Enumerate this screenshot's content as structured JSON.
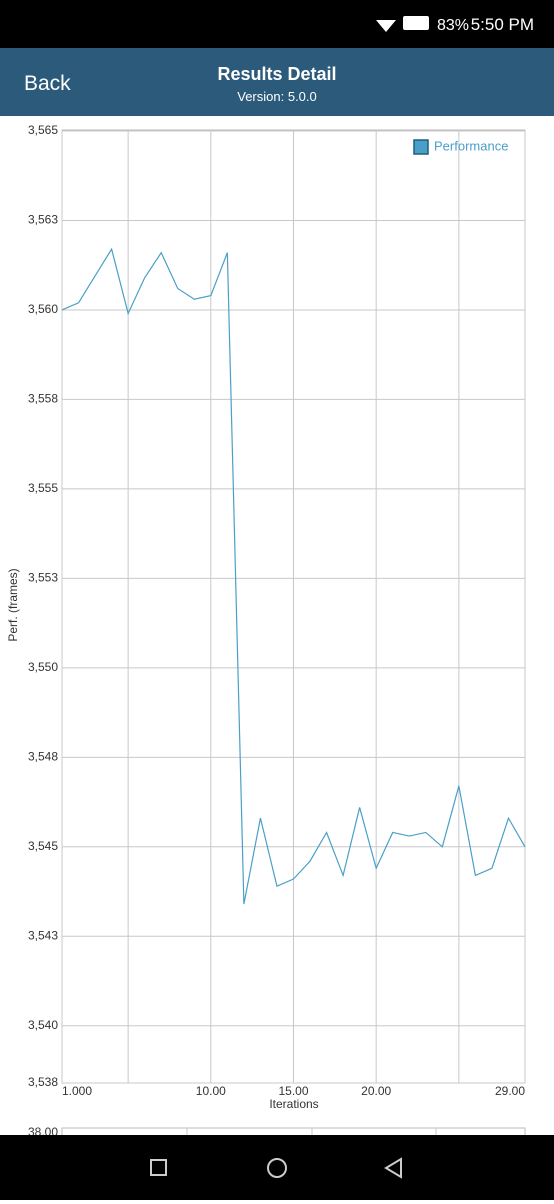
{
  "status_bar": {
    "battery": "83%",
    "time": "5:50 PM"
  },
  "header": {
    "back": "Back",
    "title": "Results Detail",
    "subtitle": "Version: 5.0.0"
  },
  "chart_data": {
    "type": "line",
    "y_label": "Perf. (frames)",
    "x_label": "Iterations",
    "x": [
      1,
      2,
      3,
      4,
      5,
      6,
      7,
      8,
      9,
      10,
      11,
      12,
      13,
      14,
      15,
      16,
      17,
      18,
      19,
      20,
      21,
      22,
      23,
      24,
      25,
      26,
      27,
      28,
      29
    ],
    "series": [
      {
        "name": "Performance",
        "color": "#4a9fc8",
        "values": [
          3560.0,
          3560.2,
          3560.95,
          3561.7,
          3559.9,
          3560.9,
          3561.6,
          3560.6,
          3560.3,
          3560.4,
          3561.6,
          3543.4,
          3545.8,
          3543.9,
          3544.1,
          3544.6,
          3545.4,
          3544.2,
          3546.1,
          3544.4,
          3545.4,
          3545.3,
          3545.4,
          3545.0,
          3546.7,
          3544.2,
          3544.4,
          3545.8,
          3545.0
        ]
      }
    ],
    "xlim": [
      1,
      29
    ],
    "ylim": [
      3538.4,
      3565
    ],
    "xticks": [
      {
        "value": 1,
        "label": "1.000"
      },
      {
        "value": 5,
        "label": null
      },
      {
        "value": 10,
        "label": "10.00"
      },
      {
        "value": 15,
        "label": "15.00"
      },
      {
        "value": 20,
        "label": "20.00"
      },
      {
        "value": 25,
        "label": null
      },
      {
        "value": 29,
        "label": "29.00"
      }
    ],
    "yticks": [
      {
        "value": 3565,
        "label": "3,565"
      },
      {
        "value": 3562.5,
        "label": "3,563"
      },
      {
        "value": 3560,
        "label": "3,560"
      },
      {
        "value": 3557.5,
        "label": "3,558"
      },
      {
        "value": 3555,
        "label": "3,555"
      },
      {
        "value": 3552.5,
        "label": "3,553"
      },
      {
        "value": 3550,
        "label": "3,550"
      },
      {
        "value": 3547.5,
        "label": "3,548"
      },
      {
        "value": 3545,
        "label": "3,545"
      },
      {
        "value": 3542.5,
        "label": "3,543"
      },
      {
        "value": 3540,
        "label": "3,540"
      },
      {
        "value": 3538.4,
        "label": "3,538"
      }
    ],
    "grid": true,
    "legend": "top-right"
  },
  "next_chart": {
    "top_label": "38.00"
  }
}
